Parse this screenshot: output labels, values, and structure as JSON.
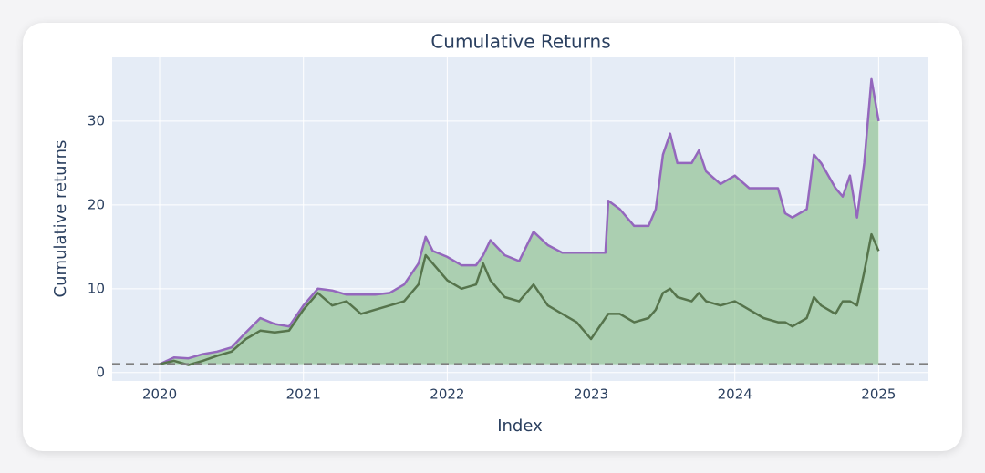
{
  "chart_data": {
    "type": "line",
    "title": "Cumulative Returns",
    "xlabel": "Index",
    "ylabel": "Cumulative returns",
    "x": [
      2020.0,
      2020.1,
      2020.2,
      2020.3,
      2020.4,
      2020.5,
      2020.6,
      2020.7,
      2020.8,
      2020.9,
      2021.0,
      2021.1,
      2021.2,
      2021.3,
      2021.4,
      2021.5,
      2021.6,
      2021.7,
      2021.8,
      2021.85,
      2021.9,
      2022.0,
      2022.1,
      2022.2,
      2022.25,
      2022.3,
      2022.4,
      2022.5,
      2022.6,
      2022.7,
      2022.8,
      2022.9,
      2023.0,
      2023.1,
      2023.12,
      2023.2,
      2023.3,
      2023.4,
      2023.45,
      2023.5,
      2023.55,
      2023.6,
      2023.7,
      2023.75,
      2023.8,
      2023.9,
      2024.0,
      2024.1,
      2024.2,
      2024.3,
      2024.35,
      2024.4,
      2024.5,
      2024.55,
      2024.6,
      2024.7,
      2024.75,
      2024.8,
      2024.85,
      2024.9,
      2024.95,
      2025.0
    ],
    "series": [
      {
        "color": "#9467bd",
        "fill_color": "#8cc08c",
        "values": [
          1.0,
          1.8,
          1.7,
          2.2,
          2.5,
          3.0,
          4.8,
          6.5,
          5.8,
          5.5,
          8.0,
          10.0,
          9.8,
          9.3,
          9.3,
          9.3,
          9.5,
          10.5,
          13.0,
          16.2,
          14.5,
          13.8,
          12.8,
          12.8,
          14.0,
          15.8,
          14.0,
          13.3,
          16.8,
          15.2,
          14.3,
          14.3,
          14.3,
          14.3,
          20.5,
          19.5,
          17.5,
          17.5,
          19.5,
          26.0,
          28.5,
          25.0,
          25.0,
          26.5,
          24.0,
          22.5,
          23.5,
          22.0,
          22.0,
          22.0,
          19.0,
          18.5,
          19.5,
          26.0,
          25.0,
          22.0,
          21.0,
          23.5,
          18.5,
          25.0,
          35.0,
          30.0
        ]
      },
      {
        "color": "#56744c",
        "values": [
          1.0,
          1.4,
          0.9,
          1.4,
          2.0,
          2.5,
          4.0,
          5.0,
          4.8,
          5.0,
          7.5,
          9.5,
          8.0,
          8.5,
          7.0,
          7.5,
          8.0,
          8.5,
          10.5,
          14.0,
          13.0,
          11.0,
          10.0,
          10.5,
          13.0,
          11.0,
          9.0,
          8.5,
          10.5,
          8.0,
          7.0,
          6.0,
          4.0,
          6.5,
          7.0,
          7.0,
          6.0,
          6.5,
          7.5,
          9.5,
          10.0,
          9.0,
          8.5,
          9.5,
          8.5,
          8.0,
          8.5,
          7.5,
          6.5,
          6.0,
          6.0,
          5.5,
          6.5,
          9.0,
          8.0,
          7.0,
          8.5,
          8.5,
          8.0,
          12.0,
          16.5,
          14.5
        ]
      }
    ],
    "hline": 1,
    "hline_color": "#7f7f7f",
    "xlim": [
      2019.67,
      2025.34
    ],
    "xticks": [
      2020,
      2021,
      2022,
      2023,
      2024,
      2025
    ],
    "ylim": [
      -1,
      37.6
    ],
    "yticks": [
      0,
      10,
      20,
      30
    ],
    "grid": true
  }
}
